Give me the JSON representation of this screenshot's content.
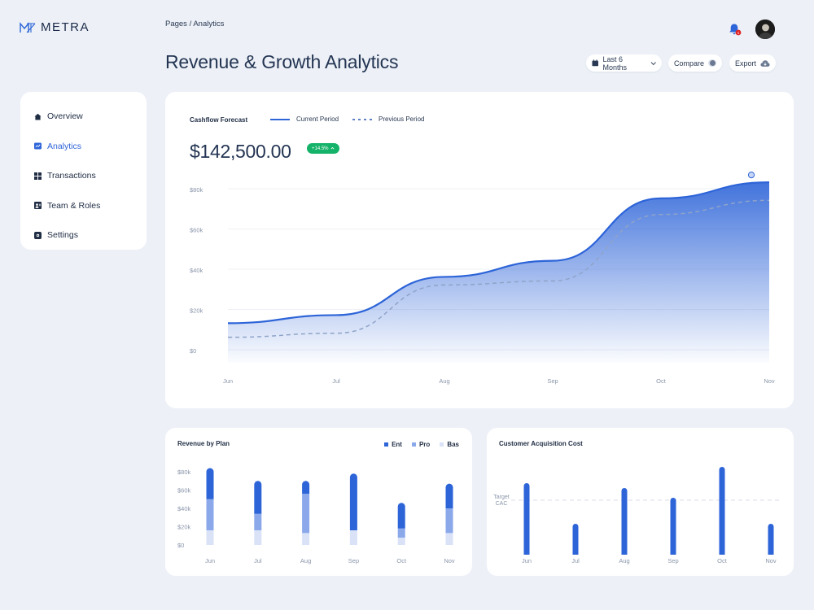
{
  "brand": {
    "name": "METRA",
    "accent": "#2d64d8"
  },
  "header": {
    "breadcrumb": "Pages / Analytics",
    "title": "Revenue & Growth Analytics",
    "notification_count": "1",
    "date_range": "Last 6 Months",
    "compare_label": "Compare",
    "export_label": "Export"
  },
  "sidebar": {
    "items": [
      {
        "label": "Overview",
        "icon": "home-icon",
        "active": false
      },
      {
        "label": "Analytics",
        "icon": "chart-icon",
        "active": true
      },
      {
        "label": "Transactions",
        "icon": "grid-icon",
        "active": false
      },
      {
        "label": "Team & Roles",
        "icon": "users-icon",
        "active": false
      },
      {
        "label": "Settings",
        "icon": "gear-icon",
        "active": false
      }
    ]
  },
  "cashflow": {
    "title": "Cashflow Forecast",
    "legend_current": "Current Period",
    "legend_previous": "Previous Period",
    "total": "$142,500.00",
    "change": "+14.5%",
    "colors": {
      "current": "#2d64d8",
      "previous": "#8fa3c8",
      "positive": "#14b369"
    }
  },
  "chart_data": [
    {
      "type": "area",
      "categories": [
        "Jun",
        "Jul",
        "Aug",
        "Sep",
        "Oct",
        "Nov"
      ],
      "y_ticks": [
        "$0",
        "$20k",
        "$40k",
        "$60k",
        "$80k"
      ],
      "ylim": [
        0,
        80000
      ],
      "series": [
        {
          "name": "Current Period",
          "values": [
            14000,
            18000,
            37000,
            45000,
            76000,
            84000
          ]
        },
        {
          "name": "Previous Period",
          "values": [
            7000,
            9000,
            33000,
            35000,
            68000,
            75000
          ]
        }
      ]
    },
    {
      "type": "bar",
      "title": "Revenue by Plan",
      "categories": [
        "Jun",
        "Jul",
        "Aug",
        "Sep",
        "Oct",
        "Nov"
      ],
      "y_ticks": [
        "$0",
        "$20k",
        "$40k",
        "$60k",
        "$80k"
      ],
      "ylim": [
        0,
        80000
      ],
      "legend": [
        "Ent",
        "Pro",
        "Bas"
      ],
      "series": [
        {
          "name": "Ent",
          "values": [
            34000,
            36000,
            14000,
            62000,
            28000,
            27000
          ]
        },
        {
          "name": "Pro",
          "values": [
            34000,
            18000,
            43000,
            0,
            10000,
            27000
          ]
        },
        {
          "name": "Bas",
          "values": [
            16000,
            16000,
            13000,
            16000,
            8000,
            13000
          ]
        }
      ],
      "colors": [
        "#2d64d8",
        "#8aa8ea",
        "#d9e2f7"
      ]
    },
    {
      "type": "bar",
      "title": "Customer Acquisition Cost",
      "categories": [
        "Jun",
        "Jul",
        "Aug",
        "Sep",
        "Oct",
        "Nov"
      ],
      "values": [
        88,
        38,
        82,
        70,
        108,
        38
      ],
      "ylim": [
        0,
        110
      ],
      "target_label": "Target CAC",
      "target": 67
    }
  ]
}
